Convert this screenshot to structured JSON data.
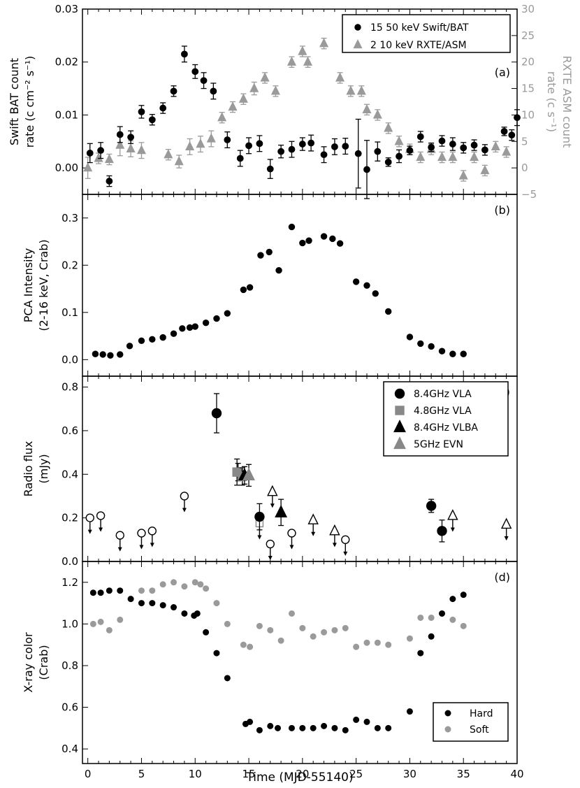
{
  "chart_data": [
    {
      "panel": "a",
      "type": "scatter",
      "panel_label": "(a)",
      "ylabel": [
        "Swift BAT count",
        "rate (c cm⁻² s⁻¹)"
      ],
      "ylabel_right": [
        "RXTE ASM count",
        "rate (c s⁻¹)"
      ],
      "ylim": [
        -0.005,
        0.03
      ],
      "yticks": [
        "0.00",
        "0.01",
        "0.02",
        "0.03"
      ],
      "ylim_right": [
        -5,
        30
      ],
      "yticks_right": [
        "−5",
        "0",
        "5",
        "10",
        "15",
        "20",
        "25",
        "30"
      ],
      "series": [
        {
          "name": "15 50 keV Swift/BAT",
          "color": "#000000",
          "marker": "circle",
          "axis": "left",
          "points": [
            [
              0.2,
              0.0028,
              0.0018
            ],
            [
              1.2,
              0.0033,
              0.0015
            ],
            [
              2,
              -0.0025,
              0.001
            ],
            [
              3,
              0.0063,
              0.0015
            ],
            [
              4,
              0.0058,
              0.0012
            ],
            [
              5,
              0.0106,
              0.0012
            ],
            [
              6,
              0.0091,
              0.001
            ],
            [
              7,
              0.0113,
              0.001
            ],
            [
              8,
              0.0145,
              0.001
            ],
            [
              9,
              0.0215,
              0.0015
            ],
            [
              10,
              0.0182,
              0.0013
            ],
            [
              10.8,
              0.0165,
              0.0015
            ],
            [
              11.7,
              0.0145,
              0.0015
            ],
            [
              13,
              0.0053,
              0.0015
            ],
            [
              14.2,
              0.0018,
              0.0015
            ],
            [
              15,
              0.0042,
              0.0015
            ],
            [
              16,
              0.0046,
              0.0015
            ],
            [
              17,
              -0.0002,
              0.0018
            ],
            [
              18,
              0.0031,
              0.0012
            ],
            [
              19,
              0.0035,
              0.0015
            ],
            [
              20,
              0.0045,
              0.0012
            ],
            [
              20.8,
              0.0047,
              0.0015
            ],
            [
              22,
              0.0025,
              0.0015
            ],
            [
              23,
              0.004,
              0.0015
            ],
            [
              24,
              0.0041,
              0.0015
            ],
            [
              25.2,
              0.0027,
              0.0065
            ],
            [
              26,
              -0.0003,
              0.0055
            ],
            [
              27,
              0.0031,
              0.0018
            ],
            [
              28,
              0.0011,
              0.0008
            ],
            [
              29,
              0.0022,
              0.0012
            ],
            [
              30,
              0.0033,
              0.0008
            ],
            [
              31,
              0.0059,
              0.001
            ],
            [
              32,
              0.0039,
              0.0008
            ],
            [
              33,
              0.0051,
              0.001
            ],
            [
              34,
              0.0045,
              0.0012
            ],
            [
              35,
              0.0038,
              0.001
            ],
            [
              36,
              0.0043,
              0.001
            ],
            [
              37,
              0.0034,
              0.001
            ],
            [
              38.8,
              0.0069,
              0.0008
            ],
            [
              39.5,
              0.0062,
              0.001
            ],
            [
              40,
              0.0095,
              0.0015
            ]
          ]
        },
        {
          "name": "2 10 keV RXTE/ASM",
          "color": "#9a9a9a",
          "marker": "triangle",
          "axis": "right",
          "points": [
            [
              0,
              0,
              2
            ],
            [
              1,
              1.8,
              1
            ],
            [
              2,
              1.6,
              1
            ],
            [
              3,
              4.3,
              2
            ],
            [
              4,
              3.6,
              1.5
            ],
            [
              5,
              3.3,
              1.5
            ],
            [
              7.5,
              2.5,
              1
            ],
            [
              8.5,
              1.2,
              1.2
            ],
            [
              9.5,
              4,
              1.5
            ],
            [
              10.5,
              4.5,
              1.5
            ],
            [
              11.5,
              5.5,
              1.5
            ],
            [
              12.5,
              9.5,
              1
            ],
            [
              13.5,
              11.5,
              1
            ],
            [
              14.5,
              13,
              1
            ],
            [
              15.5,
              15,
              1.2
            ],
            [
              16.5,
              17,
              1
            ],
            [
              17.5,
              14.5,
              1
            ],
            [
              19,
              20,
              1
            ],
            [
              20,
              22,
              1
            ],
            [
              20.5,
              20,
              1
            ],
            [
              22,
              23.5,
              1
            ],
            [
              23.5,
              17,
              1
            ],
            [
              24.5,
              14.5,
              1
            ],
            [
              25.5,
              14.5,
              1
            ],
            [
              26,
              11,
              1
            ],
            [
              27,
              10,
              1
            ],
            [
              28,
              7.5,
              1
            ],
            [
              29,
              5,
              1
            ],
            [
              30,
              3.5,
              1
            ],
            [
              31,
              2,
              1
            ],
            [
              32,
              3.5,
              1
            ],
            [
              33,
              2,
              1
            ],
            [
              34,
              2,
              1
            ],
            [
              35,
              -1.5,
              1
            ],
            [
              36,
              2,
              1
            ],
            [
              37,
              -0.5,
              1
            ],
            [
              38,
              4,
              1
            ],
            [
              39,
              3,
              1
            ]
          ]
        }
      ]
    },
    {
      "panel": "b",
      "type": "scatter",
      "panel_label": "(b)",
      "ylabel": [
        "PCA Intensity",
        "(2-16 keV, Crab)"
      ],
      "ylim": [
        -0.035,
        0.35
      ],
      "yticks": [
        "0.0",
        "0.1",
        "0.2",
        "0.3"
      ],
      "series": [
        {
          "name": "PCA",
          "color": "#000000",
          "marker": "circle",
          "points": [
            [
              0.7,
              0.012
            ],
            [
              1.4,
              0.011
            ],
            [
              2.1,
              0.009
            ],
            [
              3,
              0.011
            ],
            [
              3.9,
              0.029
            ],
            [
              5,
              0.04
            ],
            [
              6,
              0.043
            ],
            [
              7,
              0.047
            ],
            [
              8,
              0.055
            ],
            [
              8.8,
              0.066
            ],
            [
              9.5,
              0.068
            ],
            [
              10,
              0.07
            ],
            [
              11,
              0.078
            ],
            [
              12,
              0.087
            ],
            [
              13,
              0.098
            ],
            [
              14.5,
              0.148
            ],
            [
              15.1,
              0.153
            ],
            [
              16.1,
              0.221
            ],
            [
              16.9,
              0.228
            ],
            [
              17.8,
              0.189
            ],
            [
              19,
              0.281
            ],
            [
              20,
              0.247
            ],
            [
              20.6,
              0.252
            ],
            [
              22,
              0.261
            ],
            [
              22.8,
              0.256
            ],
            [
              23.5,
              0.246
            ],
            [
              25,
              0.165
            ],
            [
              26,
              0.157
            ],
            [
              26.8,
              0.14
            ],
            [
              28,
              0.102
            ],
            [
              30,
              0.048
            ],
            [
              31,
              0.034
            ],
            [
              32,
              0.028
            ],
            [
              33,
              0.018
            ],
            [
              34,
              0.012
            ],
            [
              35,
              0.012
            ]
          ]
        }
      ]
    },
    {
      "panel": "c",
      "type": "scatter",
      "panel_label": "(c)",
      "ylabel": [
        "Radio flux",
        "(mJy)"
      ],
      "ylim": [
        0,
        0.85
      ],
      "yticks": [
        "0.0",
        "0.2",
        "0.4",
        "0.6",
        "0.8"
      ],
      "legend": [
        "8.4GHz VLA",
        "4.8GHz VLA",
        "8.4GHz VLBA",
        "5GHz EVN"
      ],
      "detections": [
        {
          "series": "8.4GHz VLA",
          "x": 12,
          "y": 0.68,
          "err": 0.09
        },
        {
          "series": "8.4GHz VLA",
          "x": 14,
          "y": 0.41,
          "err": 0.04
        },
        {
          "series": "8.4GHz VLA",
          "x": 16,
          "y": 0.205,
          "err": 0.06
        },
        {
          "series": "8.4GHz VLA",
          "x": 32,
          "y": 0.255,
          "err": 0.03
        },
        {
          "series": "8.4GHz VLA",
          "x": 33,
          "y": 0.14,
          "err": 0.05
        },
        {
          "series": "4.8GHz VLA",
          "x": 13.9,
          "y": 0.41,
          "err": 0.06
        },
        {
          "series": "4.8GHz VLA",
          "x": 14.4,
          "y": 0.39,
          "err": 0.04
        },
        {
          "series": "8.4GHz VLBA",
          "x": 14.6,
          "y": 0.395,
          "err": 0.04
        },
        {
          "series": "8.4GHz VLBA",
          "x": 18,
          "y": 0.225,
          "err": 0.06
        },
        {
          "series": "5GHz EVN",
          "x": 15,
          "y": 0.395,
          "err": 0.05
        }
      ],
      "upper_limits": [
        {
          "kind": "open-circle",
          "x": 0.2,
          "y": 0.2
        },
        {
          "kind": "open-circle",
          "x": 1.2,
          "y": 0.21
        },
        {
          "kind": "open-circle",
          "x": 3,
          "y": 0.12
        },
        {
          "kind": "open-circle",
          "x": 5,
          "y": 0.13
        },
        {
          "kind": "open-circle",
          "x": 6,
          "y": 0.14
        },
        {
          "kind": "open-circle",
          "x": 9,
          "y": 0.3
        },
        {
          "kind": "open-circle",
          "x": 17,
          "y": 0.08
        },
        {
          "kind": "open-circle",
          "x": 19,
          "y": 0.13
        },
        {
          "kind": "open-circle",
          "x": 24,
          "y": 0.1
        },
        {
          "kind": "open-square",
          "x": 16,
          "y": 0.175
        },
        {
          "kind": "open-triangle",
          "x": 17.2,
          "y": 0.32
        },
        {
          "kind": "open-triangle",
          "x": 21,
          "y": 0.19
        },
        {
          "kind": "open-triangle",
          "x": 23,
          "y": 0.14
        },
        {
          "kind": "open-triangle",
          "x": 34,
          "y": 0.21
        },
        {
          "kind": "open-triangle",
          "x": 39,
          "y": 0.17
        }
      ]
    },
    {
      "panel": "d",
      "type": "scatter",
      "panel_label": "(d)",
      "xlabel": "Time (MJD-55140)",
      "xlim": [
        -0.5,
        40
      ],
      "xticks": [
        "0",
        "5",
        "10",
        "15",
        "20",
        "25",
        "30",
        "35",
        "40"
      ],
      "ylabel": [
        "X-ray color",
        "(Crab)"
      ],
      "ylim": [
        0.33,
        1.3
      ],
      "yticks": [
        "0.4",
        "0.6",
        "0.8",
        "1.0",
        "1.2"
      ],
      "legend": [
        "Hard",
        "Soft"
      ],
      "series": [
        {
          "name": "Hard",
          "color": "#000000",
          "marker": "circle",
          "points": [
            [
              0.5,
              1.15
            ],
            [
              1.2,
              1.15
            ],
            [
              2,
              1.16
            ],
            [
              3,
              1.16
            ],
            [
              4,
              1.12
            ],
            [
              5,
              1.1
            ],
            [
              6,
              1.1
            ],
            [
              7,
              1.09
            ],
            [
              8,
              1.08
            ],
            [
              9,
              1.05
            ],
            [
              9.9,
              1.04
            ],
            [
              10.2,
              1.05
            ],
            [
              11,
              0.96
            ],
            [
              12,
              0.86
            ],
            [
              13,
              0.74
            ],
            [
              14.7,
              0.52
            ],
            [
              15.1,
              0.53
            ],
            [
              16,
              0.49
            ],
            [
              17,
              0.51
            ],
            [
              17.7,
              0.5
            ],
            [
              19,
              0.5
            ],
            [
              20,
              0.5
            ],
            [
              21,
              0.5
            ],
            [
              22,
              0.51
            ],
            [
              23,
              0.5
            ],
            [
              24,
              0.49
            ],
            [
              25,
              0.54
            ],
            [
              26,
              0.53
            ],
            [
              27,
              0.5
            ],
            [
              28,
              0.5
            ],
            [
              30,
              0.58
            ],
            [
              31,
              0.86
            ],
            [
              32,
              0.94
            ],
            [
              33,
              1.05
            ],
            [
              34,
              1.12
            ],
            [
              35,
              1.14
            ]
          ]
        },
        {
          "name": "Soft",
          "color": "#9a9a9a",
          "marker": "circle",
          "points": [
            [
              0.5,
              1.0
            ],
            [
              1.2,
              1.01
            ],
            [
              2,
              0.97
            ],
            [
              3,
              1.02
            ],
            [
              4,
              1.12
            ],
            [
              5,
              1.16
            ],
            [
              6,
              1.16
            ],
            [
              7,
              1.19
            ],
            [
              8,
              1.2
            ],
            [
              9,
              1.18
            ],
            [
              10,
              1.2
            ],
            [
              10.5,
              1.19
            ],
            [
              11,
              1.17
            ],
            [
              12,
              1.1
            ],
            [
              13,
              1.0
            ],
            [
              14.5,
              0.9
            ],
            [
              15.1,
              0.89
            ],
            [
              16,
              0.99
            ],
            [
              17,
              0.97
            ],
            [
              18,
              0.92
            ],
            [
              19,
              1.05
            ],
            [
              20,
              0.98
            ],
            [
              21,
              0.94
            ],
            [
              22,
              0.96
            ],
            [
              23,
              0.97
            ],
            [
              24,
              0.98
            ],
            [
              25,
              0.89
            ],
            [
              26,
              0.91
            ],
            [
              27,
              0.91
            ],
            [
              28,
              0.9
            ],
            [
              30,
              0.93
            ],
            [
              31,
              1.03
            ],
            [
              32,
              1.03
            ],
            [
              33,
              1.05
            ],
            [
              34,
              1.02
            ],
            [
              35,
              0.99
            ]
          ]
        }
      ]
    }
  ]
}
